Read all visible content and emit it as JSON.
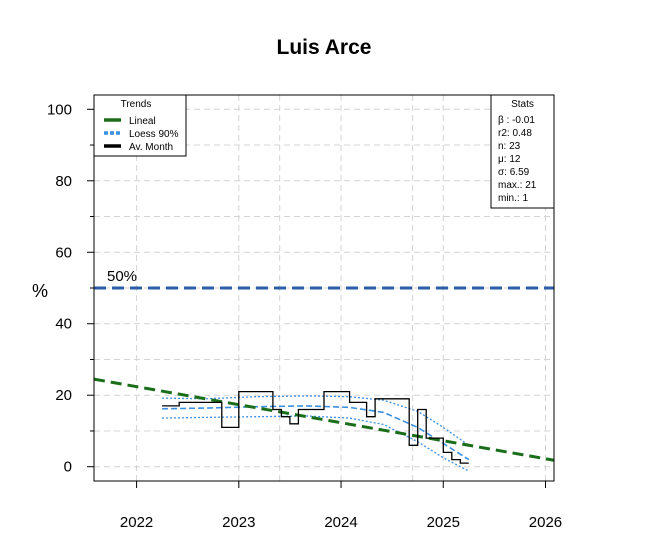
{
  "chart_data": {
    "type": "line",
    "title": "Luis Arce",
    "ylabel": "%",
    "xlabel": "",
    "xlim": [
      "2021-08-01",
      "2026-02-01"
    ],
    "ylim": [
      -4,
      104
    ],
    "x_ticks": [
      "2022",
      "2023",
      "2024",
      "2025",
      "2026"
    ],
    "y_ticks": [
      "0",
      "20",
      "40",
      "60",
      "80",
      "100"
    ],
    "grid": true,
    "reference_line": {
      "value": 50,
      "label": "50%",
      "color": "#2a5ea6"
    },
    "legend": {
      "title": "Trends",
      "position": "top-left",
      "entries": [
        {
          "name": "Lineal",
          "color": "#1a6e1a"
        },
        {
          "name": "Loess 90%",
          "color": "#3b8fe0"
        },
        {
          "name": "Av. Month",
          "color": "#000000"
        }
      ]
    },
    "stats": {
      "title": "Stats",
      "position": "top-right",
      "lines": [
        "β : -0.01",
        "r2: 0.48",
        "n: 23",
        "μ: 12",
        "σ: 6.59",
        "max.: 21",
        "min.: 1"
      ]
    },
    "series": [
      {
        "name": "Av. Month",
        "style": "step",
        "points": [
          {
            "x": "2022-04-01",
            "y": 17
          },
          {
            "x": "2022-06-01",
            "y": 18
          },
          {
            "x": "2022-11-01",
            "y": 11
          },
          {
            "x": "2023-01-01",
            "y": 21
          },
          {
            "x": "2023-05-01",
            "y": 16
          },
          {
            "x": "2023-06-01",
            "y": 14
          },
          {
            "x": "2023-07-01",
            "y": 12
          },
          {
            "x": "2023-08-01",
            "y": 16
          },
          {
            "x": "2023-11-01",
            "y": 21
          },
          {
            "x": "2024-02-01",
            "y": 18
          },
          {
            "x": "2024-03-01",
            "y": 18
          },
          {
            "x": "2024-04-01",
            "y": 14
          },
          {
            "x": "2024-05-01",
            "y": 19
          },
          {
            "x": "2024-09-01",
            "y": 6
          },
          {
            "x": "2024-10-01",
            "y": 16
          },
          {
            "x": "2024-11-01",
            "y": 8
          },
          {
            "x": "2025-01-01",
            "y": 4
          },
          {
            "x": "2025-02-01",
            "y": 2
          },
          {
            "x": "2025-03-01",
            "y": 1
          },
          {
            "x": "2025-04-01",
            "y": 1
          }
        ]
      },
      {
        "name": "Lineal",
        "style": "dashed",
        "points": [
          {
            "x": "2021-08-01",
            "y": 24.5
          },
          {
            "x": "2026-02-01",
            "y": 1.8
          }
        ]
      },
      {
        "name": "Loess 90%",
        "style": "dotted",
        "center": [
          {
            "x": "2022-04-01",
            "y": 16.2
          },
          {
            "x": "2022-09-01",
            "y": 16.4
          },
          {
            "x": "2023-03-01",
            "y": 16.8
          },
          {
            "x": "2023-09-01",
            "y": 17.0
          },
          {
            "x": "2024-02-01",
            "y": 16.6
          },
          {
            "x": "2024-06-01",
            "y": 15.2
          },
          {
            "x": "2024-10-01",
            "y": 11.0
          },
          {
            "x": "2025-01-01",
            "y": 6.5
          },
          {
            "x": "2025-04-01",
            "y": 2.0
          }
        ],
        "upper": [
          {
            "x": "2022-04-01",
            "y": 19.2
          },
          {
            "x": "2022-09-01",
            "y": 19.0
          },
          {
            "x": "2023-03-01",
            "y": 19.6
          },
          {
            "x": "2023-09-01",
            "y": 19.8
          },
          {
            "x": "2024-02-01",
            "y": 19.6
          },
          {
            "x": "2024-06-01",
            "y": 18.6
          },
          {
            "x": "2024-10-01",
            "y": 15.5
          },
          {
            "x": "2025-01-01",
            "y": 11.0
          },
          {
            "x": "2025-04-01",
            "y": 6.0
          }
        ],
        "lower": [
          {
            "x": "2022-04-01",
            "y": 13.6
          },
          {
            "x": "2022-09-01",
            "y": 13.8
          },
          {
            "x": "2023-03-01",
            "y": 14.0
          },
          {
            "x": "2023-09-01",
            "y": 14.2
          },
          {
            "x": "2024-02-01",
            "y": 13.6
          },
          {
            "x": "2024-06-01",
            "y": 11.8
          },
          {
            "x": "2024-10-01",
            "y": 7.0
          },
          {
            "x": "2025-01-01",
            "y": 2.5
          },
          {
            "x": "2025-04-01",
            "y": -1.2
          }
        ]
      }
    ]
  }
}
